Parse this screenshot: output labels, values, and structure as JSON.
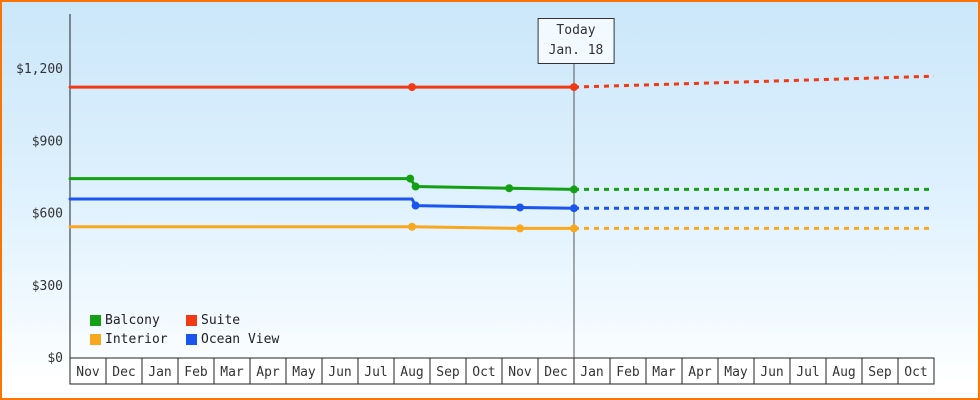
{
  "colors": {
    "frame": "#ff7300",
    "axis": "#222222",
    "today_line": "#555555",
    "text": "#333333",
    "month_cell_bg": "#ffffff"
  },
  "chart_data": {
    "type": "line",
    "title": "",
    "xlabel": "",
    "ylabel": "",
    "x_axis": {
      "months": [
        "Nov",
        "Dec",
        "Jan",
        "Feb",
        "Mar",
        "Apr",
        "May",
        "Jun",
        "Jul",
        "Aug",
        "Sep",
        "Oct",
        "Nov",
        "Dec",
        "Jan",
        "Feb",
        "Mar",
        "Apr",
        "May",
        "Jun",
        "Jul",
        "Aug",
        "Sep",
        "Oct"
      ]
    },
    "y_axis": {
      "ticks": [
        0,
        300,
        600,
        900,
        1200
      ],
      "tick_labels": [
        "$0",
        "$300",
        "$600",
        "$900",
        "$1,200"
      ],
      "ylim": [
        0,
        1250
      ]
    },
    "today": {
      "label_line1": "Today",
      "label_line2": "Jan. 18",
      "month_index": 14
    },
    "series": [
      {
        "name": "Suite",
        "color": "#f23913",
        "history": [
          {
            "x": 0,
            "y": 1125
          },
          {
            "x": 9.5,
            "y": 1125,
            "dot": true
          },
          {
            "x": 14,
            "y": 1125,
            "dot": true
          }
        ],
        "forecast": [
          {
            "x": 14,
            "y": 1125
          },
          {
            "x": 24,
            "y": 1170
          }
        ]
      },
      {
        "name": "Balcony",
        "color": "#14a014",
        "history": [
          {
            "x": 0,
            "y": 745
          },
          {
            "x": 9.45,
            "y": 745,
            "dot": true
          },
          {
            "x": 9.6,
            "y": 712,
            "dot": true
          },
          {
            "x": 12.2,
            "y": 705,
            "dot": true
          },
          {
            "x": 14,
            "y": 700,
            "dot": true
          }
        ],
        "forecast": [
          {
            "x": 14,
            "y": 700
          },
          {
            "x": 24,
            "y": 700
          }
        ]
      },
      {
        "name": "Ocean View",
        "color": "#1a55ee",
        "history": [
          {
            "x": 0,
            "y": 660
          },
          {
            "x": 9.5,
            "y": 660
          },
          {
            "x": 9.6,
            "y": 633,
            "dot": true
          },
          {
            "x": 12.5,
            "y": 625,
            "dot": true
          },
          {
            "x": 14,
            "y": 622,
            "dot": true
          }
        ],
        "forecast": [
          {
            "x": 14,
            "y": 622
          },
          {
            "x": 24,
            "y": 622
          }
        ]
      },
      {
        "name": "Interior",
        "color": "#f7a81e",
        "history": [
          {
            "x": 0,
            "y": 545
          },
          {
            "x": 9.5,
            "y": 545,
            "dot": true
          },
          {
            "x": 12.5,
            "y": 538,
            "dot": true
          },
          {
            "x": 14,
            "y": 538,
            "dot": true
          }
        ],
        "forecast": [
          {
            "x": 14,
            "y": 538
          },
          {
            "x": 24,
            "y": 538
          }
        ]
      }
    ],
    "legend": [
      {
        "label": "Balcony",
        "color": "#14a014"
      },
      {
        "label": "Suite",
        "color": "#f23913"
      },
      {
        "label": "Interior",
        "color": "#f7a81e"
      },
      {
        "label": "Ocean View",
        "color": "#1a55ee"
      }
    ],
    "legend_position": "bottom-left",
    "grid": false
  }
}
